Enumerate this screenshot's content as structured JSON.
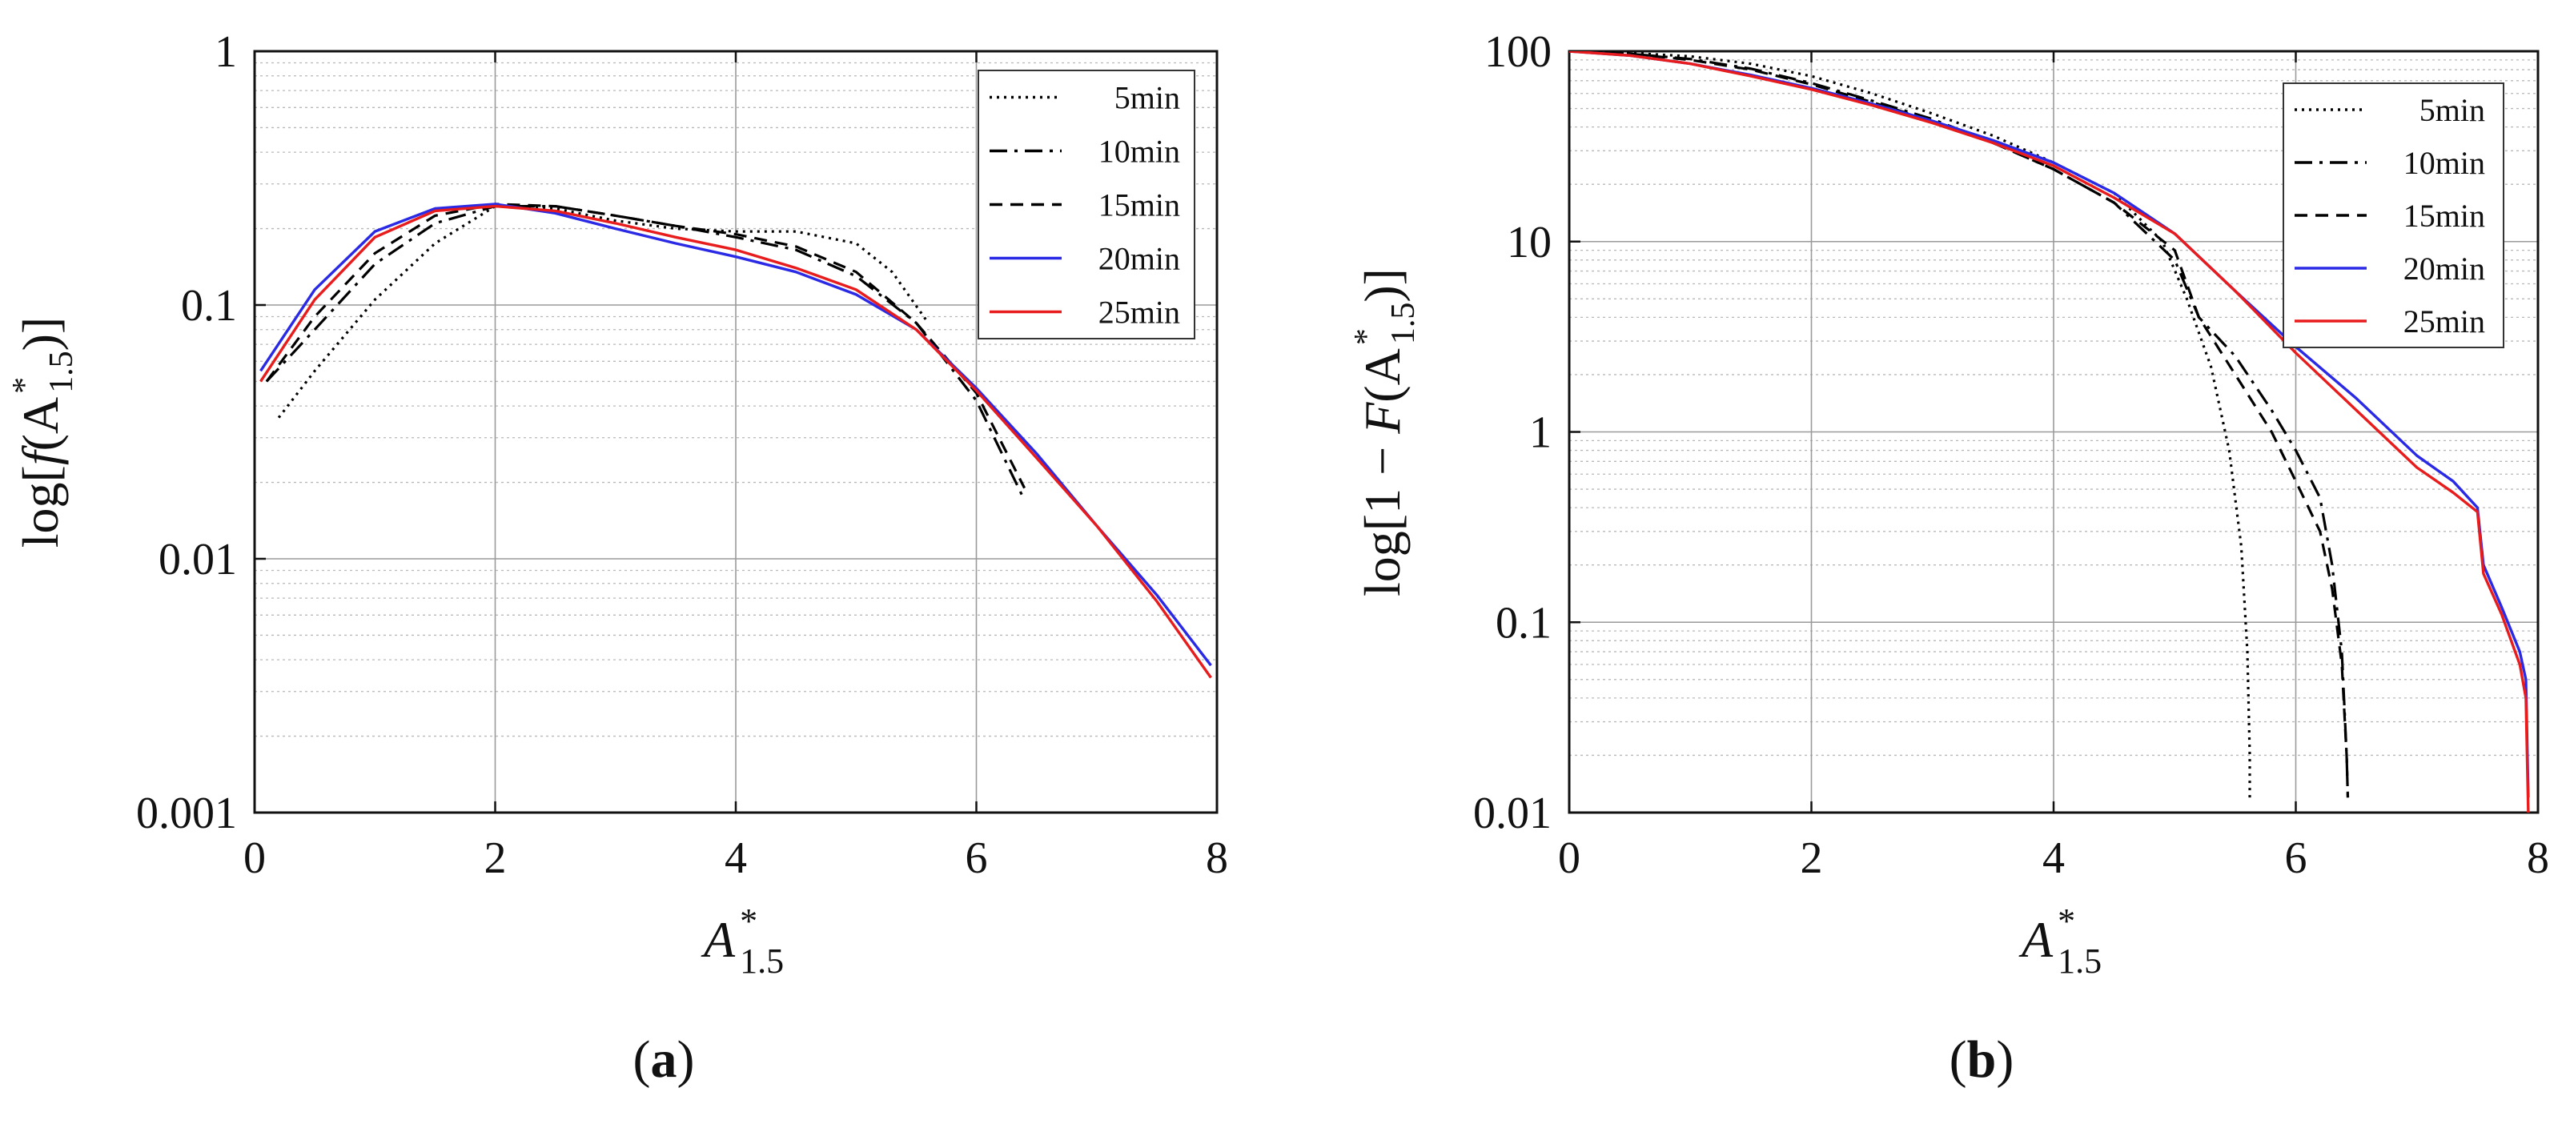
{
  "chart_data": [
    {
      "type": "line",
      "panel_label": "(a)",
      "panel_letter": "a",
      "xlabel": "A",
      "xlabel_sup": "*",
      "xlabel_sub": "1.5",
      "ylabel_prefix": "log[",
      "ylabel_func": "f",
      "ylabel_inner": "(A",
      "ylabel_sup": "*",
      "ylabel_sub": "1.5",
      "ylabel_suffix": ")]",
      "yscale": "log",
      "xlim": [
        0,
        8
      ],
      "ylim": [
        0.001,
        1
      ],
      "x_ticks": [
        0,
        2,
        4,
        6,
        8
      ],
      "x_tick_labels": [
        "0",
        "2",
        "4",
        "6",
        "8"
      ],
      "y_ticks": [
        0.001,
        0.01,
        0.1,
        1
      ],
      "y_tick_labels": [
        "0.001",
        "0.01",
        "0.1",
        "1"
      ],
      "grid": true,
      "legend_position": "top-right",
      "series": [
        {
          "name": "5min",
          "color": "#000000",
          "dash": "dotted",
          "x": [
            0.2,
            0.5,
            1.0,
            1.5,
            2.0,
            2.5,
            3.0,
            3.5,
            4.0,
            4.5,
            5.0,
            5.3,
            5.6
          ],
          "y": [
            0.036,
            0.055,
            0.105,
            0.175,
            0.245,
            0.24,
            0.215,
            0.2,
            0.195,
            0.195,
            0.175,
            0.135,
            0.085
          ]
        },
        {
          "name": "10min",
          "color": "#000000",
          "dash": "dashdot",
          "x": [
            0.1,
            0.5,
            1.0,
            1.5,
            2.0,
            2.5,
            3.0,
            3.5,
            4.0,
            4.5,
            5.0,
            5.5,
            6.0,
            6.4
          ],
          "y": [
            0.05,
            0.08,
            0.145,
            0.21,
            0.245,
            0.245,
            0.225,
            0.205,
            0.185,
            0.165,
            0.13,
            0.085,
            0.042,
            0.017
          ]
        },
        {
          "name": "15min",
          "color": "#000000",
          "dash": "dashed",
          "x": [
            0.1,
            0.5,
            1.0,
            1.5,
            2.0,
            2.5,
            3.0,
            3.5,
            4.0,
            4.5,
            5.0,
            5.5,
            6.0,
            6.4
          ],
          "y": [
            0.05,
            0.09,
            0.16,
            0.225,
            0.25,
            0.245,
            0.225,
            0.205,
            0.19,
            0.17,
            0.135,
            0.085,
            0.045,
            0.019
          ]
        },
        {
          "name": "20min",
          "color": "#2a2ae6",
          "dash": "solid",
          "x": [
            0.05,
            0.5,
            1.0,
            1.5,
            2.0,
            2.5,
            3.0,
            3.5,
            4.0,
            4.5,
            5.0,
            5.5,
            6.0,
            6.5,
            7.0,
            7.5,
            7.95
          ],
          "y": [
            0.055,
            0.115,
            0.195,
            0.24,
            0.25,
            0.23,
            0.2,
            0.175,
            0.155,
            0.135,
            0.11,
            0.08,
            0.047,
            0.026,
            0.0135,
            0.0072,
            0.0038
          ]
        },
        {
          "name": "25min",
          "color": "#e81c1c",
          "dash": "solid",
          "x": [
            0.05,
            0.5,
            1.0,
            1.5,
            2.0,
            2.5,
            3.0,
            3.5,
            4.0,
            4.5,
            5.0,
            5.5,
            6.0,
            6.5,
            7.0,
            7.5,
            7.95
          ],
          "y": [
            0.05,
            0.105,
            0.185,
            0.235,
            0.245,
            0.235,
            0.21,
            0.185,
            0.165,
            0.14,
            0.115,
            0.08,
            0.046,
            0.025,
            0.0135,
            0.0068,
            0.0034
          ]
        }
      ]
    },
    {
      "type": "line",
      "panel_label": "(b)",
      "panel_letter": "b",
      "xlabel": "A",
      "xlabel_sup": "*",
      "xlabel_sub": "1.5",
      "ylabel_prefix": "log[1 − ",
      "ylabel_func": "F",
      "ylabel_inner": "(A",
      "ylabel_sup": "*",
      "ylabel_sub": "1.5",
      "ylabel_suffix": ")]",
      "yscale": "log",
      "xlim": [
        0,
        8
      ],
      "ylim": [
        0.01,
        100
      ],
      "x_ticks": [
        0,
        2,
        4,
        6,
        8
      ],
      "x_tick_labels": [
        "0",
        "2",
        "4",
        "6",
        "8"
      ],
      "y_ticks": [
        0.01,
        0.1,
        1,
        10,
        100
      ],
      "y_tick_labels": [
        "0.01",
        "0.1",
        "1",
        "10",
        "100"
      ],
      "grid": true,
      "legend_position": "top-right",
      "series": [
        {
          "name": "5min",
          "color": "#000000",
          "dash": "dotted",
          "x": [
            0,
            0.5,
            1.0,
            1.5,
            2.0,
            2.5,
            3.0,
            3.5,
            4.0,
            4.5,
            4.9,
            5.1,
            5.3,
            5.45,
            5.55,
            5.6,
            5.62,
            5.62
          ],
          "y": [
            100,
            98,
            94,
            86,
            74,
            60,
            47,
            36,
            26,
            18,
            10,
            5,
            2.2,
            0.8,
            0.25,
            0.07,
            0.02,
            0.012
          ]
        },
        {
          "name": "10min",
          "color": "#000000",
          "dash": "dashdot",
          "x": [
            0,
            0.5,
            1.0,
            1.5,
            2.0,
            2.5,
            3.0,
            3.5,
            4.0,
            4.5,
            5.0,
            5.2,
            5.5,
            5.8,
            6.0,
            6.2,
            6.3,
            6.38,
            6.42,
            6.43
          ],
          "y": [
            100,
            97,
            91,
            81,
            68,
            55,
            44,
            33,
            24,
            16,
            8,
            4,
            2.5,
            1.3,
            0.8,
            0.45,
            0.2,
            0.07,
            0.02,
            0.012
          ]
        },
        {
          "name": "15min",
          "color": "#000000",
          "dash": "dashed",
          "x": [
            0,
            0.5,
            1.0,
            1.5,
            2.0,
            2.5,
            3.0,
            3.5,
            4.0,
            4.5,
            5.0,
            5.2,
            5.5,
            5.8,
            6.0,
            6.2,
            6.3,
            6.38,
            6.42,
            6.43
          ],
          "y": [
            100,
            97,
            90,
            80,
            67,
            54,
            43,
            33,
            24,
            16,
            9,
            4,
            2,
            1,
            0.55,
            0.3,
            0.15,
            0.06,
            0.02,
            0.012
          ]
        },
        {
          "name": "20min",
          "color": "#2a2ae6",
          "dash": "solid",
          "x": [
            0,
            0.5,
            1.0,
            1.5,
            2.0,
            2.5,
            3.0,
            3.5,
            4.0,
            4.5,
            5.0,
            5.5,
            6.0,
            6.5,
            7.0,
            7.3,
            7.5,
            7.55,
            7.7,
            7.85,
            7.9,
            7.92
          ],
          "y": [
            100,
            95,
            86,
            75,
            64,
            53,
            43,
            34,
            26,
            18,
            11,
            5.5,
            2.8,
            1.5,
            0.75,
            0.55,
            0.4,
            0.2,
            0.12,
            0.07,
            0.05,
            0.012
          ]
        },
        {
          "name": "25min",
          "color": "#e81c1c",
          "dash": "solid",
          "x": [
            0,
            0.5,
            1.0,
            1.5,
            2.0,
            2.5,
            3.0,
            3.5,
            4.0,
            4.5,
            5.0,
            5.5,
            6.0,
            6.5,
            7.0,
            7.3,
            7.5,
            7.55,
            7.7,
            7.85,
            7.9,
            7.92
          ],
          "y": [
            100,
            95,
            86,
            74,
            63,
            52,
            42,
            33,
            25,
            17,
            11,
            5.5,
            2.6,
            1.3,
            0.65,
            0.48,
            0.38,
            0.18,
            0.11,
            0.06,
            0.04,
            0.01
          ]
        }
      ]
    }
  ]
}
